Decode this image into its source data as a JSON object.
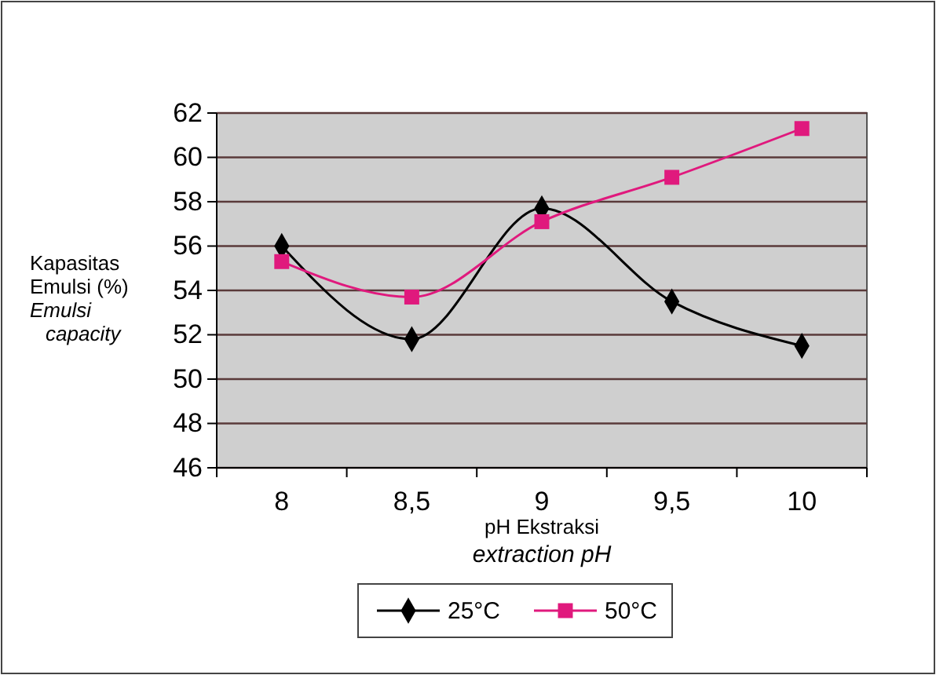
{
  "chart_data": {
    "type": "line",
    "xlabel": "pH Ekstraksi\nextraction pH",
    "ylabel": "Kapasitas\nEmulsi (%)\nEmulsi\ncapacity",
    "categories": [
      "8",
      "8,5",
      "9",
      "9,5",
      "10"
    ],
    "series": [
      {
        "name": "25°C",
        "color": "#000000",
        "marker": "diamond",
        "values": [
          56.0,
          51.8,
          57.7,
          53.5,
          51.5
        ]
      },
      {
        "name": "50°C",
        "color": "#e0197d",
        "marker": "square",
        "values": [
          55.3,
          53.7,
          57.1,
          59.1,
          61.3
        ]
      }
    ],
    "ylim": [
      46,
      62
    ],
    "yticks": [
      46,
      48,
      50,
      52,
      54,
      56,
      58,
      60,
      62
    ],
    "grid": "y",
    "legend": "bottom",
    "line_style": "solid"
  }
}
